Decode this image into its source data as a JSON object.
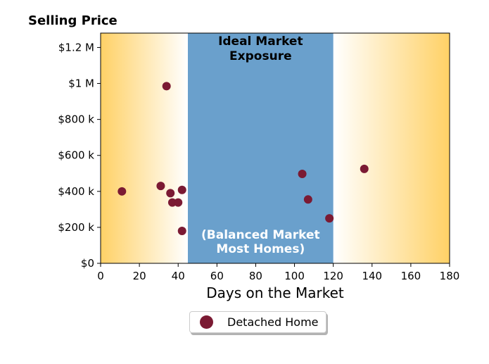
{
  "chart_data": {
    "type": "scatter",
    "title": "Selling Price",
    "xlabel": "Days on the Market",
    "ylabel": "",
    "xlim": [
      0,
      180
    ],
    "ylim": [
      0,
      1280000
    ],
    "x_ticks": [
      0,
      20,
      40,
      60,
      80,
      100,
      120,
      140,
      160,
      180
    ],
    "y_ticks": [
      0,
      200000,
      400000,
      600000,
      800000,
      1000000,
      1200000
    ],
    "y_tick_labels": [
      "$0",
      "$200 k",
      "$400 k",
      "$600 k",
      "$800 k",
      "$1 M",
      "$1.2 M"
    ],
    "grid": false,
    "legend_position": "bottom-center, below plot",
    "series": [
      {
        "name": "Detached Home",
        "color": "#7b1a33",
        "points": [
          {
            "x": 11,
            "y": 400000
          },
          {
            "x": 31,
            "y": 430000
          },
          {
            "x": 34,
            "y": 985000
          },
          {
            "x": 36,
            "y": 390000
          },
          {
            "x": 37,
            "y": 338000
          },
          {
            "x": 40,
            "y": 338000
          },
          {
            "x": 42,
            "y": 408000
          },
          {
            "x": 42,
            "y": 180000
          },
          {
            "x": 104,
            "y": 497000
          },
          {
            "x": 107,
            "y": 355000
          },
          {
            "x": 118,
            "y": 250000
          },
          {
            "x": 136,
            "y": 525000
          }
        ]
      }
    ],
    "bands": [
      {
        "x_start": 45,
        "x_end": 120,
        "color": "#6aa0cc",
        "top_label": [
          "Ideal Market",
          "Exposure"
        ],
        "bottom_label": [
          "(Balanced Market",
          "Most Homes)"
        ]
      }
    ],
    "background_gradient_color": "#ffd166"
  }
}
